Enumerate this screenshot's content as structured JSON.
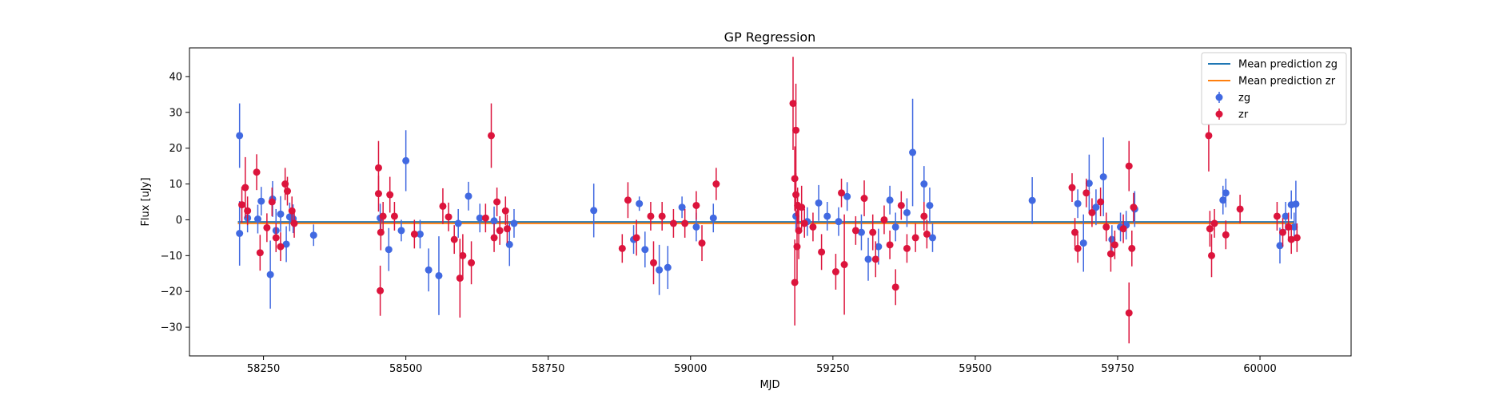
{
  "chart_data": {
    "type": "scatter",
    "title": "GP Regression",
    "xlabel": "MJD",
    "ylabel": "Flux [uJy]",
    "xlim": [
      58120,
      60160
    ],
    "ylim": [
      -38,
      48
    ],
    "xticks": [
      58250,
      58500,
      58750,
      59000,
      59250,
      59500,
      59750,
      60000
    ],
    "yticks": [
      -30,
      -20,
      -10,
      0,
      10,
      20,
      30,
      40
    ],
    "legend_position": "top-right",
    "lines": [
      {
        "name": "Mean prediction zg",
        "color": "#1f77b4",
        "x": [
          58205,
          60060
        ],
        "y": [
          -0.6,
          -0.6
        ]
      },
      {
        "name": "Mean prediction zr",
        "color": "#ff7f0e",
        "x": [
          58205,
          60060
        ],
        "y": [
          -1.0,
          -1.0
        ]
      }
    ],
    "series": [
      {
        "name": "zg",
        "color": "#4169e1",
        "points": [
          [
            58208,
            23.5,
            9
          ],
          [
            58208,
            -3.8,
            9
          ],
          [
            58222,
            0.5,
            4
          ],
          [
            58240,
            0.2,
            4
          ],
          [
            58246,
            5.2,
            4
          ],
          [
            58262,
            -15.3,
            9.5
          ],
          [
            58266,
            5.8,
            5
          ],
          [
            58272,
            -3.0,
            6
          ],
          [
            58280,
            1.6,
            5
          ],
          [
            58290,
            -6.8,
            5
          ],
          [
            58296,
            0.8,
            4
          ],
          [
            58302,
            0.3,
            4
          ],
          [
            58338,
            -4.3,
            3
          ],
          [
            58455,
            0.5,
            4
          ],
          [
            58470,
            -8.3,
            6
          ],
          [
            58492,
            -3.0,
            3
          ],
          [
            58500,
            16.5,
            8.5
          ],
          [
            58525,
            -4.0,
            4
          ],
          [
            58540,
            -14.0,
            6
          ],
          [
            58558,
            -15.6,
            11
          ],
          [
            58592,
            -1.0,
            4
          ],
          [
            58610,
            6.6,
            4
          ],
          [
            58630,
            0.5,
            4
          ],
          [
            58655,
            -0.3,
            4
          ],
          [
            58682,
            -6.9,
            6
          ],
          [
            58690,
            -1.0,
            4
          ],
          [
            58830,
            2.6,
            7.5
          ],
          [
            58900,
            -5.5,
            4
          ],
          [
            58910,
            4.5,
            2
          ],
          [
            58920,
            -8.3,
            5
          ],
          [
            58945,
            -14.0,
            7
          ],
          [
            58960,
            -13.3,
            6
          ],
          [
            58985,
            3.5,
            3
          ],
          [
            59010,
            -2.0,
            4
          ],
          [
            59040,
            0.5,
            4
          ],
          [
            59185,
            1.0,
            4
          ],
          [
            59205,
            -0.5,
            4
          ],
          [
            59225,
            4.7,
            5
          ],
          [
            59240,
            1.0,
            4
          ],
          [
            59260,
            -0.5,
            4
          ],
          [
            59275,
            6.5,
            4
          ],
          [
            59300,
            -3.5,
            5
          ],
          [
            59312,
            -11.0,
            6
          ],
          [
            59330,
            -7.5,
            5
          ],
          [
            59350,
            5.5,
            4
          ],
          [
            59360,
            -2.0,
            4
          ],
          [
            59380,
            2.0,
            4
          ],
          [
            59390,
            18.8,
            15
          ],
          [
            59410,
            10.0,
            5
          ],
          [
            59420,
            4.0,
            5
          ],
          [
            59425,
            -5.0,
            4
          ],
          [
            59600,
            5.4,
            6.5
          ],
          [
            59680,
            4.5,
            4
          ],
          [
            59690,
            -6.5,
            8
          ],
          [
            59700,
            10.2,
            8
          ],
          [
            59712,
            3.5,
            5
          ],
          [
            59725,
            12.0,
            11
          ],
          [
            59740,
            -5.5,
            4
          ],
          [
            59755,
            -2.0,
            4
          ],
          [
            59765,
            -1.5,
            4
          ],
          [
            59780,
            3.0,
            5
          ],
          [
            59935,
            5.5,
            4
          ],
          [
            59940,
            7.5,
            4
          ],
          [
            60035,
            -7.2,
            5
          ],
          [
            60045,
            1.0,
            4
          ],
          [
            60055,
            4.2,
            4
          ],
          [
            60063,
            4.4,
            6.5
          ],
          [
            60060,
            -2.0,
            4
          ]
        ]
      },
      {
        "name": "zr",
        "color": "#dc143c",
        "points": [
          [
            58212,
            4.2,
            5
          ],
          [
            58218,
            9.0,
            8.5
          ],
          [
            58222,
            2.5,
            4
          ],
          [
            58238,
            13.3,
            5
          ],
          [
            58244,
            -9.2,
            5
          ],
          [
            58256,
            -2.2,
            4
          ],
          [
            58265,
            5.0,
            4
          ],
          [
            58272,
            -5.0,
            4
          ],
          [
            58280,
            -7.5,
            4
          ],
          [
            58288,
            10.0,
            4.5
          ],
          [
            58292,
            8.0,
            4
          ],
          [
            58300,
            2.5,
            4
          ],
          [
            58304,
            -1.0,
            4
          ],
          [
            58452,
            14.5,
            7.5
          ],
          [
            58452,
            7.3,
            5
          ],
          [
            58455,
            -19.8,
            7
          ],
          [
            58456,
            -3.5,
            5
          ],
          [
            58460,
            1.0,
            4
          ],
          [
            58472,
            7.0,
            5
          ],
          [
            58480,
            1.0,
            4
          ],
          [
            58515,
            -4.0,
            4
          ],
          [
            58565,
            3.8,
            5
          ],
          [
            58575,
            0.8,
            4
          ],
          [
            58585,
            -5.5,
            4
          ],
          [
            58595,
            -16.3,
            11
          ],
          [
            58600,
            -10.0,
            6
          ],
          [
            58615,
            -12.0,
            6
          ],
          [
            58640,
            0.5,
            4
          ],
          [
            58650,
            23.5,
            9
          ],
          [
            58655,
            -5.0,
            4
          ],
          [
            58660,
            5.0,
            4
          ],
          [
            58665,
            -3.0,
            4
          ],
          [
            58675,
            2.5,
            4
          ],
          [
            58678,
            -2.5,
            4
          ],
          [
            58880,
            -8.0,
            4
          ],
          [
            58890,
            5.5,
            5
          ],
          [
            58905,
            -5.0,
            5
          ],
          [
            58930,
            1.0,
            4
          ],
          [
            58935,
            -12.0,
            6
          ],
          [
            58950,
            1.0,
            4
          ],
          [
            58970,
            -1.0,
            4
          ],
          [
            58990,
            -1.0,
            4
          ],
          [
            59010,
            4.0,
            4
          ],
          [
            59020,
            -6.5,
            5
          ],
          [
            59045,
            10.0,
            4.5
          ],
          [
            59180,
            32.5,
            13
          ],
          [
            59185,
            25.0,
            13
          ],
          [
            59183,
            11.5,
            9
          ],
          [
            59185,
            7.0,
            6
          ],
          [
            59188,
            4.0,
            5
          ],
          [
            59183,
            -17.5,
            12
          ],
          [
            59187,
            -7.5,
            10
          ],
          [
            59190,
            -3.0,
            8
          ],
          [
            59195,
            3.5,
            6
          ],
          [
            59200,
            -1.0,
            4
          ],
          [
            59215,
            -2.0,
            4
          ],
          [
            59230,
            -9.0,
            5
          ],
          [
            59255,
            -14.5,
            5
          ],
          [
            59265,
            7.5,
            4
          ],
          [
            59270,
            -12.5,
            14
          ],
          [
            59290,
            -3.0,
            4
          ],
          [
            59305,
            6.0,
            5
          ],
          [
            59320,
            -3.5,
            5
          ],
          [
            59325,
            -11.0,
            5
          ],
          [
            59340,
            0.0,
            4
          ],
          [
            59350,
            -7.0,
            4
          ],
          [
            59360,
            -18.8,
            5
          ],
          [
            59370,
            4.0,
            4
          ],
          [
            59380,
            -8.0,
            4
          ],
          [
            59395,
            -5.0,
            4
          ],
          [
            59410,
            1.0,
            4
          ],
          [
            59415,
            -4.0,
            4
          ],
          [
            59670,
            9.0,
            4
          ],
          [
            59675,
            -3.5,
            4
          ],
          [
            59680,
            -8.0,
            4
          ],
          [
            59695,
            7.5,
            4
          ],
          [
            59705,
            2.0,
            4
          ],
          [
            59720,
            5.0,
            4
          ],
          [
            59730,
            -2.0,
            4
          ],
          [
            59738,
            -9.5,
            5
          ],
          [
            59745,
            -7.0,
            4
          ],
          [
            59760,
            -2.5,
            4
          ],
          [
            59770,
            15.0,
            7
          ],
          [
            59770,
            -26.0,
            8.5
          ],
          [
            59775,
            -8.0,
            5
          ],
          [
            59778,
            3.5,
            4
          ],
          [
            59910,
            23.5,
            10
          ],
          [
            59912,
            -2.5,
            5
          ],
          [
            59915,
            -10.0,
            6
          ],
          [
            59920,
            -1.0,
            4
          ],
          [
            59940,
            -4.2,
            4
          ],
          [
            59965,
            3.0,
            4
          ],
          [
            60030,
            1.0,
            4
          ],
          [
            60040,
            -3.5,
            4
          ],
          [
            60050,
            -2.0,
            4
          ],
          [
            60055,
            -5.5,
            4
          ],
          [
            60065,
            -5.0,
            4
          ]
        ]
      }
    ]
  }
}
